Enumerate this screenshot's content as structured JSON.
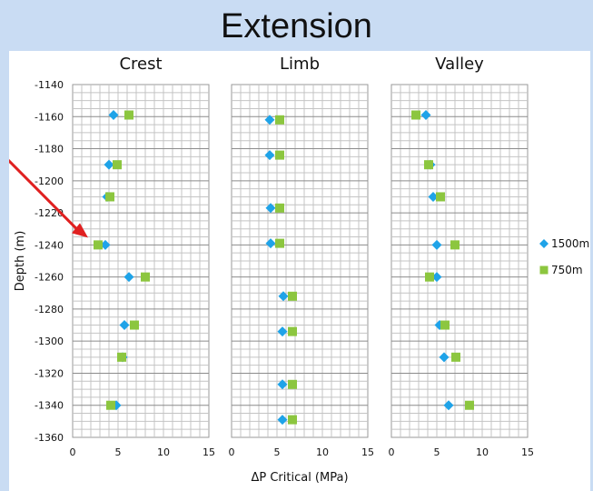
{
  "slide": {
    "title": "Extension"
  },
  "chart_data": {
    "type": "scatter",
    "title": "",
    "xlabel": "ΔP Critical (MPa)",
    "ylabel": "Depth (m)",
    "xlim": [
      0,
      15
    ],
    "ylim": [
      -1360,
      -1140
    ],
    "xticks": [
      0,
      5,
      10,
      15
    ],
    "yticks": [
      -1140,
      -1160,
      -1180,
      -1200,
      -1220,
      -1240,
      -1260,
      -1280,
      -1300,
      -1320,
      -1340,
      -1360
    ],
    "grid": true,
    "legend_position": "right",
    "series_styles": [
      {
        "name": "1500m",
        "color": "#1fa3e8",
        "marker": "diamond"
      },
      {
        "name": "750m",
        "color": "#8cc63f",
        "marker": "square"
      }
    ],
    "panels": [
      {
        "title": "Crest",
        "series": [
          {
            "name": "1500m",
            "x": [
              4.5,
              4,
              3.8,
              3.6,
              6.2,
              5.7,
              5.5,
              4.8
            ],
            "y": [
              -1159,
              -1190,
              -1210,
              -1240,
              -1260,
              -1290,
              -1310,
              -1340
            ]
          },
          {
            "name": "750m",
            "x": [
              6.2,
              4.9,
              4.1,
              2.8,
              8,
              6.8,
              5.4,
              4.2
            ],
            "y": [
              -1159,
              -1190,
              -1210,
              -1240,
              -1260,
              -1290,
              -1310,
              -1340
            ]
          }
        ]
      },
      {
        "title": "Limb",
        "series": [
          {
            "name": "1500m",
            "x": [
              4.2,
              4.2,
              4.3,
              4.3,
              5.7,
              5.6,
              5.6,
              5.6
            ],
            "y": [
              -1162,
              -1184,
              -1217,
              -1239,
              -1272,
              -1294,
              -1327,
              -1349
            ]
          },
          {
            "name": "750m",
            "x": [
              5.3,
              5.3,
              5.3,
              5.3,
              6.7,
              6.7,
              6.7,
              6.7
            ],
            "y": [
              -1162,
              -1184,
              -1217,
              -1239,
              -1272,
              -1294,
              -1327,
              -1349
            ]
          }
        ]
      },
      {
        "title": "Valley",
        "series": [
          {
            "name": "1500m",
            "x": [
              3.8,
              4.3,
              4.6,
              5,
              5,
              5.3,
              5.8,
              6.3
            ],
            "y": [
              -1159,
              -1190,
              -1210,
              -1240,
              -1260,
              -1290,
              -1310,
              -1340
            ]
          },
          {
            "name": "750m",
            "x": [
              2.7,
              4.1,
              5.4,
              7,
              4.2,
              5.9,
              7.1,
              8.6
            ],
            "y": [
              -1159,
              -1190,
              -1210,
              -1240,
              -1260,
              -1290,
              -1310,
              -1340
            ]
          }
        ]
      }
    ]
  }
}
